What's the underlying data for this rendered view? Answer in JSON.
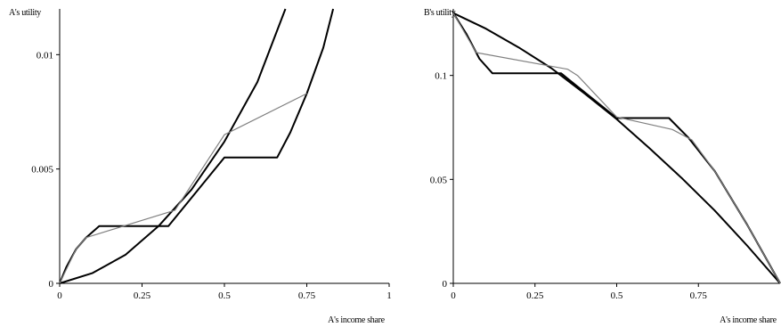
{
  "chart_data": [
    {
      "type": "line",
      "ylabel": "A's utility",
      "xlabel": "A's income share",
      "xlim": [
        0,
        1
      ],
      "ylim": [
        0,
        0.012
      ],
      "xticks": [
        0,
        0.25,
        0.5,
        0.75,
        1
      ],
      "xtick_labels": [
        "0",
        "0.25",
        "0.5",
        "0.75",
        "1"
      ],
      "yticks": [
        0,
        0.005,
        0.01
      ],
      "ytick_labels": [
        "0",
        "0.005",
        "0.01"
      ],
      "grid": false,
      "series": [
        {
          "style": "thick",
          "x": [
            0,
            0.1,
            0.2,
            0.3,
            0.4,
            0.5,
            0.6,
            0.685
          ],
          "y": [
            0,
            0.00045,
            0.00125,
            0.0025,
            0.0041,
            0.0062,
            0.0088,
            0.012
          ]
        },
        {
          "style": "thick",
          "x": [
            0,
            0.02,
            0.05,
            0.08,
            0.12,
            0.33,
            0.5,
            0.66,
            0.7,
            0.75,
            0.8,
            0.83
          ],
          "y": [
            0,
            0.0007,
            0.0015,
            0.002,
            0.0025,
            0.0025,
            0.0055,
            0.0055,
            0.0066,
            0.0083,
            0.0103,
            0.012
          ]
        },
        {
          "style": "thin",
          "x": [
            0,
            0.05,
            0.08,
            0.35,
            0.5,
            0.75
          ],
          "y": [
            0,
            0.0015,
            0.002,
            0.0032,
            0.0065,
            0.0083
          ]
        }
      ]
    },
    {
      "type": "line",
      "ylabel": "B's utility",
      "xlabel": "A's income share",
      "xlim": [
        0,
        1
      ],
      "ylim": [
        0,
        0.132
      ],
      "xticks": [
        0,
        0.25,
        0.5,
        0.75
      ],
      "xtick_labels": [
        "0",
        "0.25",
        "0.5",
        "0.75"
      ],
      "yticks": [
        0,
        0.05,
        0.1
      ],
      "ytick_labels": [
        "0",
        "0.05",
        "0.1"
      ],
      "grid": false,
      "series": [
        {
          "style": "thick",
          "x": [
            0,
            0.1,
            0.2,
            0.3,
            0.4,
            0.5,
            0.6,
            0.7,
            0.8,
            0.9,
            1.0
          ],
          "y": [
            0.13,
            0.1225,
            0.1135,
            0.1035,
            0.0915,
            0.079,
            0.065,
            0.0505,
            0.035,
            0.018,
            0
          ]
        },
        {
          "style": "thick",
          "x": [
            0,
            0.04,
            0.08,
            0.12,
            0.33,
            0.5,
            0.66,
            0.72,
            0.8,
            0.9,
            1.0
          ],
          "y": [
            0.13,
            0.12,
            0.108,
            0.101,
            0.101,
            0.0795,
            0.0795,
            0.07,
            0.054,
            0.028,
            0
          ]
        },
        {
          "style": "thin",
          "x": [
            0,
            0.07,
            0.35,
            0.38,
            0.5,
            0.67,
            0.73,
            0.8,
            0.9,
            1.0
          ],
          "y": [
            0.13,
            0.111,
            0.103,
            0.1,
            0.08,
            0.074,
            0.069,
            0.054,
            0.028,
            0
          ]
        }
      ]
    }
  ]
}
